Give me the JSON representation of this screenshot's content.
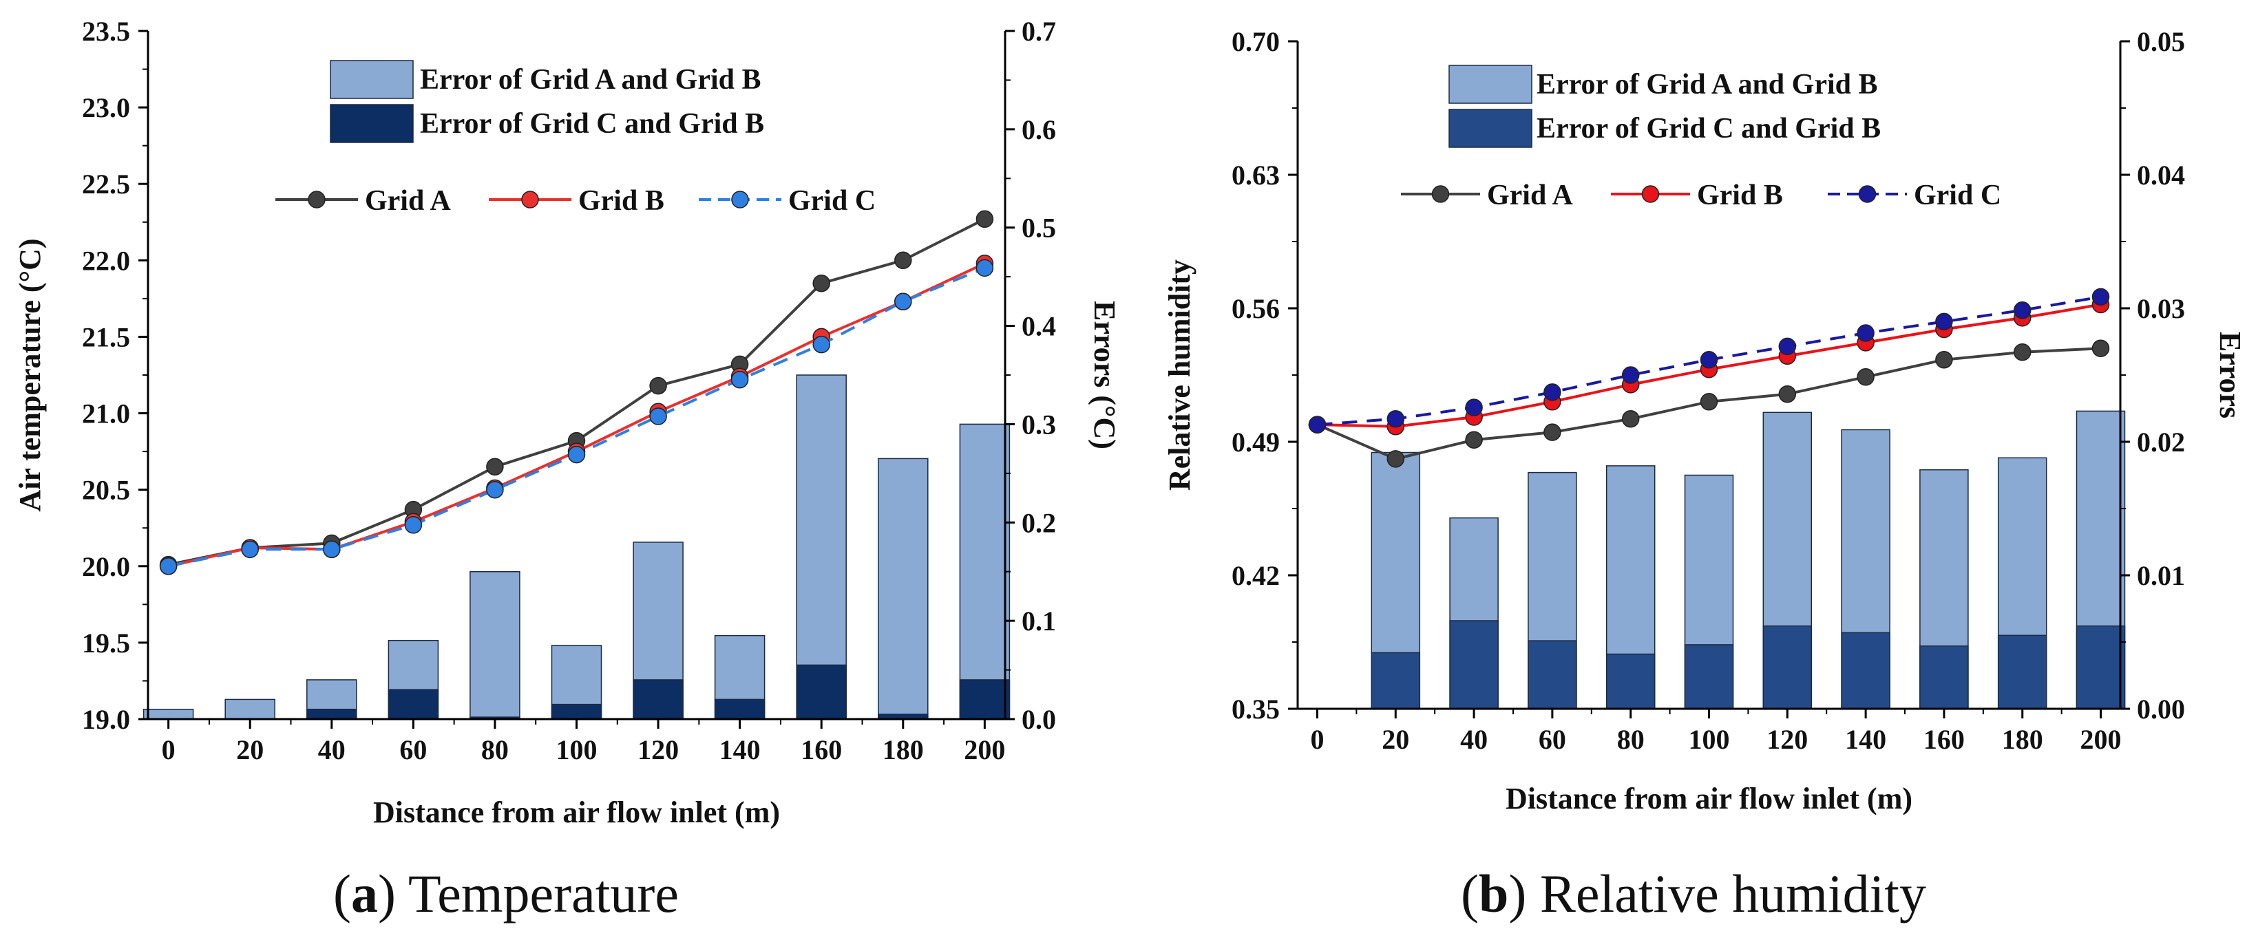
{
  "chart_data": [
    {
      "type": "line+bar",
      "caption_letter": "a",
      "caption_text": "Temperature",
      "xlabel": "Distance from air flow inlet (m)",
      "ylabel_left": "Air temperature (°C)",
      "ylabel_right": "Errors (°C)",
      "x": [
        0,
        20,
        40,
        60,
        80,
        100,
        120,
        140,
        160,
        180,
        200
      ],
      "xticks": [
        "0",
        "20",
        "40",
        "60",
        "80",
        "100",
        "120",
        "140",
        "160",
        "180",
        "200"
      ],
      "ylim_left": [
        19.0,
        23.5
      ],
      "yticks_left": [
        "19.0",
        "19.5",
        "20.0",
        "20.5",
        "21.0",
        "21.5",
        "22.0",
        "22.5",
        "23.0",
        "23.5"
      ],
      "ylim_right": [
        0.0,
        0.7
      ],
      "yticks_right": [
        "0.0",
        "0.1",
        "0.2",
        "0.3",
        "0.4",
        "0.5",
        "0.6",
        "0.7"
      ],
      "series": [
        {
          "name": "Grid A",
          "axis": "left",
          "values": [
            20.01,
            20.12,
            20.15,
            20.37,
            20.65,
            20.82,
            21.18,
            21.32,
            21.85,
            22.0,
            22.27
          ]
        },
        {
          "name": "Grid B",
          "axis": "left",
          "values": [
            20.0,
            20.12,
            20.11,
            20.29,
            20.51,
            20.75,
            21.01,
            21.24,
            21.5,
            21.73,
            21.98
          ]
        },
        {
          "name": "Grid C",
          "axis": "left",
          "values": [
            20.0,
            20.11,
            20.11,
            20.27,
            20.5,
            20.73,
            20.98,
            21.22,
            21.45,
            21.73,
            21.95
          ]
        }
      ],
      "bars": [
        {
          "name": "Error of Grid A and Grid B",
          "axis": "right",
          "values": [
            0.01,
            0.02,
            0.04,
            0.08,
            0.15,
            0.075,
            0.18,
            0.085,
            0.35,
            0.265,
            0.3
          ]
        },
        {
          "name": "Error of Grid C and Grid B",
          "axis": "right",
          "values": [
            0.0,
            0.0,
            0.01,
            0.03,
            0.002,
            0.015,
            0.04,
            0.02,
            0.055,
            0.005,
            0.04
          ]
        }
      ],
      "colors": {
        "grid_a": "#404040",
        "grid_b": "#e8312f",
        "grid_c": "#2f7fe0",
        "bar_light": "#8aa9d3",
        "bar_dark": "#0c2e63",
        "axis": "#000000"
      }
    },
    {
      "type": "line+bar",
      "caption_letter": "b",
      "caption_text": "Relative humidity",
      "xlabel": "Distance from air flow inlet (m)",
      "ylabel_left": "Relative humidity",
      "ylabel_right": "Errors",
      "x": [
        0,
        20,
        40,
        60,
        80,
        100,
        120,
        140,
        160,
        180,
        200
      ],
      "xticks": [
        "0",
        "20",
        "40",
        "60",
        "80",
        "100",
        "120",
        "140",
        "160",
        "180",
        "200"
      ],
      "ylim_left": [
        0.35,
        0.7
      ],
      "yticks_left": [
        "0.35",
        "0.42",
        "0.49",
        "0.56",
        "0.63",
        "0.70"
      ],
      "ylim_right": [
        0.0,
        0.05
      ],
      "yticks_right": [
        "0.00",
        "0.01",
        "0.02",
        "0.03",
        "0.04",
        "0.05"
      ],
      "series": [
        {
          "name": "Grid A",
          "axis": "left",
          "values": [
            0.499,
            0.481,
            0.491,
            0.495,
            0.502,
            0.511,
            0.515,
            0.524,
            0.533,
            0.537,
            0.539
          ]
        },
        {
          "name": "Grid B",
          "axis": "left",
          "values": [
            0.499,
            0.498,
            0.503,
            0.511,
            0.52,
            0.528,
            0.535,
            0.542,
            0.549,
            0.555,
            0.562
          ]
        },
        {
          "name": "Grid C",
          "axis": "left",
          "values": [
            0.499,
            0.502,
            0.508,
            0.516,
            0.525,
            0.533,
            0.54,
            0.547,
            0.553,
            0.559,
            0.566
          ]
        }
      ],
      "bars": [
        {
          "name": "Error of Grid A and Grid B",
          "axis": "right",
          "values": [
            null,
            0.0192,
            0.0143,
            0.0177,
            0.0182,
            0.0175,
            0.0222,
            0.0209,
            0.0179,
            0.0188,
            0.0223
          ]
        },
        {
          "name": "Error of Grid C and Grid B",
          "axis": "right",
          "values": [
            null,
            0.0042,
            0.0066,
            0.0051,
            0.0041,
            0.0048,
            0.0062,
            0.0057,
            0.0047,
            0.0055,
            0.0062
          ]
        }
      ],
      "colors": {
        "grid_a": "#404040",
        "grid_b": "#e8131b",
        "grid_c": "#1a1a9c",
        "bar_light": "#8aa9d3",
        "bar_dark": "#244b87",
        "axis": "#000000"
      }
    }
  ]
}
